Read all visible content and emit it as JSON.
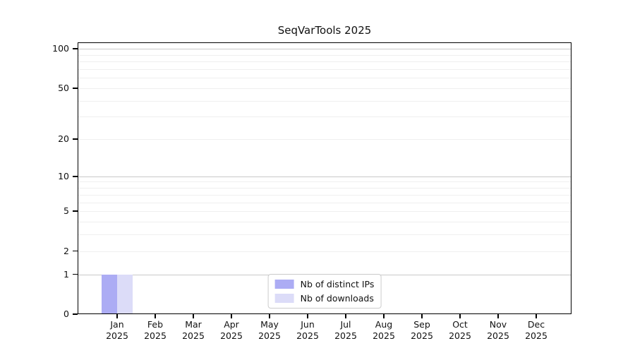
{
  "chart_data": {
    "type": "bar",
    "title": "SeqVarTools 2025",
    "categories": [
      "Jan",
      "Feb",
      "Mar",
      "Apr",
      "May",
      "Jun",
      "Jul",
      "Aug",
      "Sep",
      "Oct",
      "Nov",
      "Dec"
    ],
    "category_year": "2025",
    "series": [
      {
        "name": "Nb of distinct IPs",
        "color": "#acacf4",
        "values": [
          1,
          0,
          0,
          0,
          0,
          0,
          0,
          0,
          0,
          0,
          0,
          0
        ]
      },
      {
        "name": "Nb of downloads",
        "color": "#dcdcf8",
        "values": [
          1,
          0,
          0,
          0,
          0,
          0,
          0,
          0,
          0,
          0,
          0,
          0
        ]
      }
    ],
    "y_ticks": [
      0,
      1,
      2,
      5,
      10,
      20,
      50,
      100
    ],
    "y_major_gridlines": [
      1,
      10,
      100
    ],
    "y_minor_gridlines": [
      2,
      3,
      4,
      5,
      6,
      7,
      8,
      9,
      20,
      30,
      40,
      50,
      60,
      70,
      80,
      90
    ],
    "y_scale": "log1p",
    "ylim": [
      0,
      112
    ],
    "xlabel": "",
    "ylabel": "",
    "grid": "horizontal",
    "legend": {
      "position": "lower-center",
      "entries": [
        "Nb of distinct IPs",
        "Nb of downloads"
      ]
    }
  },
  "colors": {
    "axis": "#000000",
    "major_grid": "#c9c9c9",
    "minor_grid": "#efefef",
    "legend_border": "#cccccc",
    "background": "#ffffff"
  }
}
